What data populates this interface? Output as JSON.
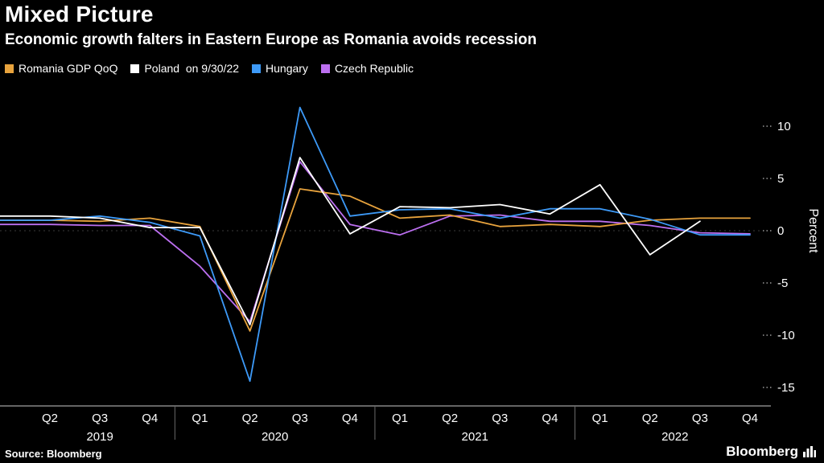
{
  "header": {
    "title": "Mixed Picture",
    "subtitle": "Economic growth falters in Eastern Europe as Romania avoids recession"
  },
  "source": "Source: Bloomberg",
  "logo_text": "Bloomberg",
  "colors": {
    "background": "#000000",
    "axis": "#c8c8c8",
    "tick": "#999999",
    "zero_line": "#3a3a3a",
    "text": "#ffffff"
  },
  "chart_data": {
    "type": "line",
    "title": "Mixed Picture",
    "subtitle": "Economic growth falters in Eastern Europe as Romania avoids recession",
    "ylabel": "Percent",
    "ylim": [
      -16,
      12.5
    ],
    "yticks": [
      10,
      5,
      0,
      -5,
      -10,
      -15
    ],
    "quarters": [
      "Q2",
      "Q3",
      "Q4",
      "Q1",
      "Q2",
      "Q3",
      "Q4",
      "Q1",
      "Q2",
      "Q3",
      "Q4",
      "Q1",
      "Q2",
      "Q3",
      "Q4"
    ],
    "years": [
      {
        "label": "2019",
        "quarter_indices": [
          0,
          1,
          2
        ]
      },
      {
        "label": "2020",
        "quarter_indices": [
          3,
          4,
          5,
          6
        ]
      },
      {
        "label": "2021",
        "quarter_indices": [
          7,
          8,
          9,
          10
        ]
      },
      {
        "label": "2022",
        "quarter_indices": [
          11,
          12,
          13,
          14
        ]
      }
    ],
    "legend_position": "top-left",
    "grid": false,
    "series": [
      {
        "name": "Romania GDP QoQ",
        "legend_label": "Romania GDP QoQ",
        "color": "#E8A33D",
        "values": [
          1.0,
          0.9,
          1.2,
          0.4,
          -9.6,
          4.0,
          3.3,
          1.2,
          1.5,
          0.4,
          0.6,
          0.4,
          1.0,
          1.2,
          1.2
        ]
      },
      {
        "name": "Poland",
        "legend_label": "Poland  on 9/30/22",
        "color": "#FFFFFF",
        "values": [
          1.4,
          1.2,
          0.3,
          0.3,
          -9.0,
          7.0,
          -0.3,
          2.3,
          2.2,
          2.5,
          1.6,
          4.4,
          -2.3,
          0.9,
          null
        ]
      },
      {
        "name": "Hungary",
        "legend_label": "Hungary",
        "color": "#3D9AF8",
        "values": [
          1.0,
          1.4,
          0.8,
          -0.5,
          -14.4,
          11.8,
          1.4,
          2.0,
          2.1,
          1.2,
          2.1,
          2.1,
          1.1,
          -0.4,
          -0.4
        ]
      },
      {
        "name": "Czech Republic",
        "legend_label": "Czech Republic",
        "color": "#BC6FF0",
        "values": [
          0.6,
          0.5,
          0.5,
          -3.4,
          -8.7,
          6.6,
          0.6,
          -0.4,
          1.4,
          1.5,
          0.9,
          0.9,
          0.5,
          -0.2,
          -0.3
        ]
      }
    ],
    "draw_order": [
      3,
      0,
      2,
      1
    ]
  }
}
